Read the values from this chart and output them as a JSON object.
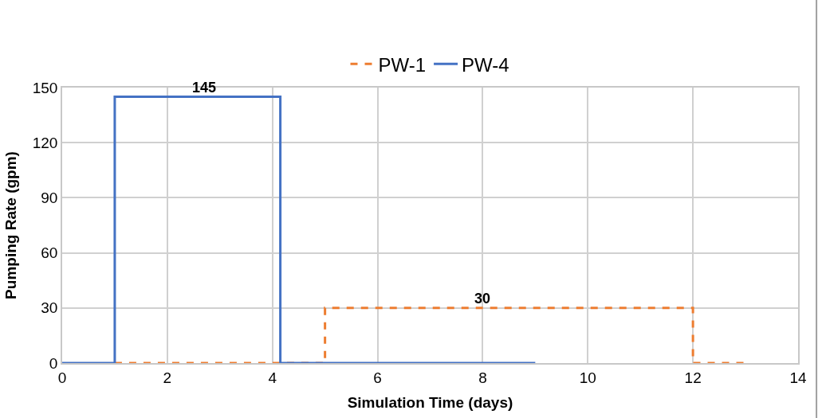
{
  "chart_data": {
    "type": "line",
    "xlabel": "Simulation Time (days)",
    "ylabel": "Pumping Rate (gpm)",
    "xlim": [
      0,
      14
    ],
    "xticks": [
      0,
      2,
      4,
      6,
      8,
      10,
      12,
      14
    ],
    "ylim": [
      0,
      150
    ],
    "yticks": [
      0,
      30,
      60,
      90,
      120,
      150
    ],
    "grid": true,
    "legend": "top",
    "marker": "none",
    "series": [
      {
        "name": "PW-1",
        "color": "#ed7d31",
        "line_style": "dashed",
        "x": [
          1,
          5,
          5,
          12,
          12,
          13
        ],
        "values": [
          0,
          0,
          30,
          30,
          0,
          0
        ]
      },
      {
        "name": "PW-4",
        "color": "#4472c4",
        "line_style": "solid",
        "x": [
          0,
          1,
          1,
          4.15,
          4.15,
          9
        ],
        "values": [
          0,
          0,
          145,
          145,
          0,
          0
        ]
      }
    ],
    "annotations": [
      {
        "text": "145",
        "x": 2.7,
        "y": 145
      },
      {
        "text": "30",
        "x": 8,
        "y": 30
      }
    ]
  }
}
